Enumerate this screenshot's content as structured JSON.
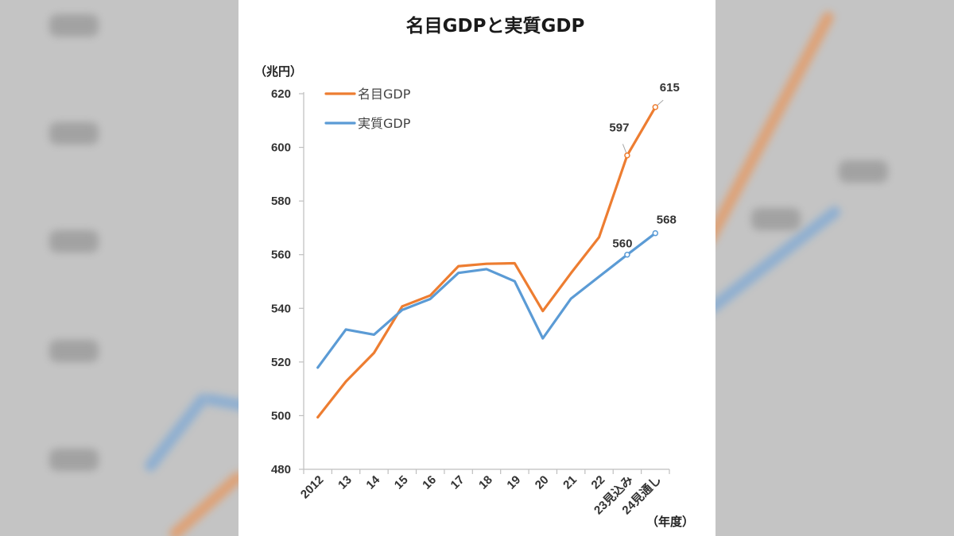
{
  "chart_data": {
    "type": "line",
    "title": "名目GDPと実質GDP",
    "ylabel": "（兆円）",
    "xlabel": "（年度）",
    "ylim": [
      480,
      620
    ],
    "yticks": [
      480,
      500,
      520,
      540,
      560,
      580,
      600,
      620
    ],
    "categories": [
      "2012",
      "13",
      "14",
      "15",
      "16",
      "17",
      "18",
      "19",
      "20",
      "21",
      "22",
      "23見込み",
      "24見通し"
    ],
    "series": [
      {
        "name": "名目GDP",
        "color": "#ed7d31",
        "values": [
          499.4,
          512.7,
          523.4,
          540.7,
          544.8,
          555.7,
          556.6,
          556.8,
          539.0,
          553.1,
          566.5,
          597,
          615
        ],
        "labels": [
          {
            "index": 11,
            "text": "597"
          },
          {
            "index": 12,
            "text": "615"
          }
        ]
      },
      {
        "name": "実質GDP",
        "color": "#5b9bd5",
        "values": [
          517.9,
          532.1,
          530.2,
          539.4,
          543.5,
          553.2,
          554.6,
          550.1,
          528.8,
          543.6,
          551.8,
          560,
          568
        ],
        "labels": [
          {
            "index": 11,
            "text": "560"
          },
          {
            "index": 12,
            "text": "568"
          }
        ]
      }
    ],
    "legend_position": "top-left"
  }
}
